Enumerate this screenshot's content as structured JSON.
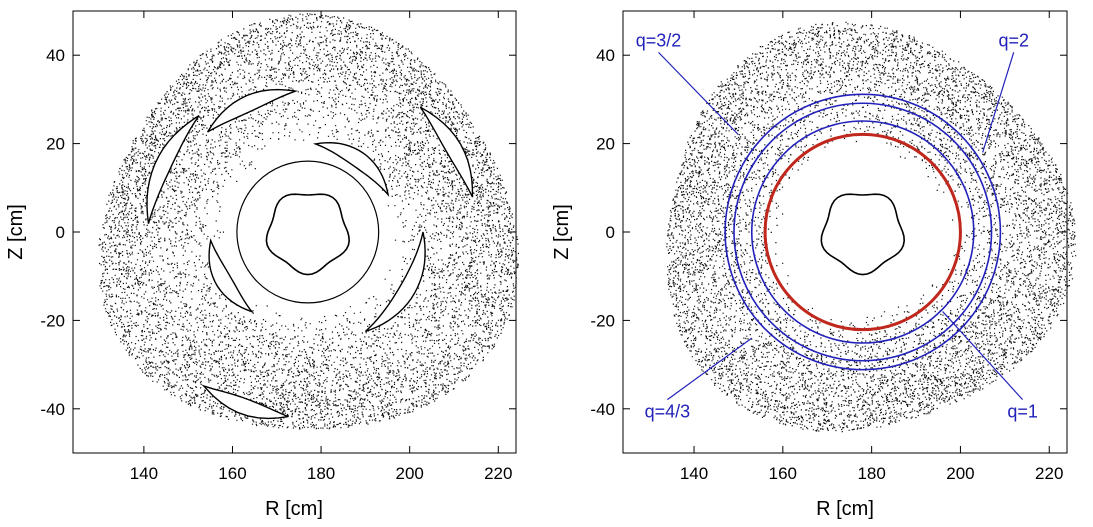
{
  "chart_data": [
    {
      "type": "scatter",
      "panel": "left",
      "title": "",
      "xlabel": "R  [cm]",
      "ylabel": "Z  [cm]",
      "xlim": [
        124,
        224
      ],
      "ylim": [
        -50,
        50
      ],
      "xticks": [
        140,
        160,
        180,
        200,
        220
      ],
      "yticks": [
        40,
        20,
        0,
        -20,
        -40
      ],
      "xtick_labels": [
        "140",
        "160",
        "180",
        "200",
        "220"
      ],
      "ytick_labels": [
        "40",
        "20",
        "0",
        "-20",
        "-40"
      ],
      "grid": false,
      "plasma": {
        "center": [
          177,
          0
        ],
        "inner_radius": 9,
        "outer_radius": 47
      },
      "annotations": []
    },
    {
      "type": "scatter",
      "panel": "right",
      "title": "",
      "xlabel": "R  [cm]",
      "ylabel": "Z  [cm]",
      "xlim": [
        124,
        224
      ],
      "ylim": [
        -50,
        50
      ],
      "xticks": [
        140,
        160,
        180,
        200,
        220
      ],
      "yticks": [
        40,
        20,
        0,
        -20,
        -40
      ],
      "xtick_labels": [
        "140",
        "160",
        "180",
        "200",
        "220"
      ],
      "ytick_labels": [
        "40",
        "20",
        "0",
        "-20",
        "-40"
      ],
      "grid": false,
      "plasma": {
        "center": [
          178,
          0
        ],
        "inner_radius": 9,
        "outer_radius": 46
      },
      "surfaces": [
        {
          "label": "q=1",
          "radius": 22,
          "color": "#c0281e"
        },
        {
          "label": "q=4/3",
          "radius": 25,
          "color": "#2222bb"
        },
        {
          "label": "q=3/2",
          "radius": 29,
          "color": "#2222bb"
        },
        {
          "label": "q=2",
          "radius": 31,
          "color": "#2222bb"
        }
      ],
      "annotations": [
        {
          "text": "q=3/2",
          "x": 132,
          "y": 42,
          "target": [
            150,
            22
          ]
        },
        {
          "text": "q=2",
          "x": 212,
          "y": 42,
          "target": [
            205,
            18
          ]
        },
        {
          "text": "q=4/3",
          "x": 134,
          "y": -42,
          "target": [
            153,
            -24
          ]
        },
        {
          "text": "q=1",
          "x": 214,
          "y": -42,
          "target": [
            196,
            -18
          ]
        }
      ]
    }
  ],
  "colors": {
    "axis": "#000000",
    "points": "#111111",
    "annotation": "#2222bb",
    "q1": "#c0281e"
  }
}
